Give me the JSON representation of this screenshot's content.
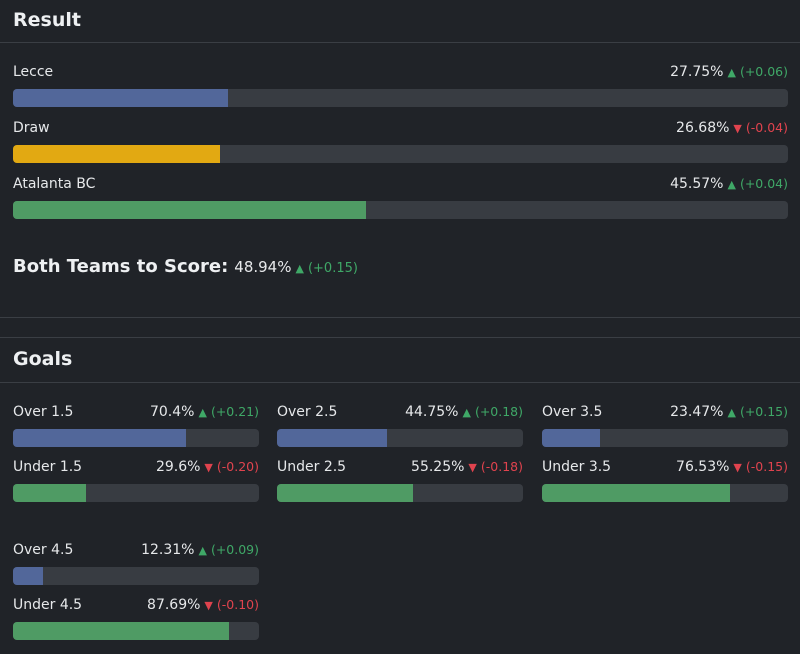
{
  "colors": {
    "blue": "#52679a",
    "yellow": "#e2a912",
    "green": "#4f9b64",
    "up": "#3fa867",
    "down": "#e0434e"
  },
  "result": {
    "title": "Result",
    "rows": [
      {
        "label": "Lecce",
        "pct": "27.75%",
        "value": 27.75,
        "direction": "up",
        "delta": "(+0.06)",
        "color": "blue"
      },
      {
        "label": "Draw",
        "pct": "26.68%",
        "value": 26.68,
        "direction": "down",
        "delta": "(-0.04)",
        "color": "yellow"
      },
      {
        "label": "Atalanta BC",
        "pct": "45.57%",
        "value": 45.57,
        "direction": "up",
        "delta": "(+0.04)",
        "color": "green"
      }
    ]
  },
  "btts": {
    "label": "Both Teams to Score:",
    "pct": "48.94%",
    "direction": "up",
    "delta": "(+0.15)"
  },
  "goals": {
    "title": "Goals",
    "groups": [
      {
        "over": {
          "label": "Over 1.5",
          "pct": "70.4%",
          "value": 70.4,
          "direction": "up",
          "delta": "(+0.21)"
        },
        "under": {
          "label": "Under 1.5",
          "pct": "29.6%",
          "value": 29.6,
          "direction": "down",
          "delta": "(-0.20)"
        }
      },
      {
        "over": {
          "label": "Over 2.5",
          "pct": "44.75%",
          "value": 44.75,
          "direction": "up",
          "delta": "(+0.18)"
        },
        "under": {
          "label": "Under 2.5",
          "pct": "55.25%",
          "value": 55.25,
          "direction": "down",
          "delta": "(-0.18)"
        }
      },
      {
        "over": {
          "label": "Over 3.5",
          "pct": "23.47%",
          "value": 23.47,
          "direction": "up",
          "delta": "(+0.15)"
        },
        "under": {
          "label": "Under 3.5",
          "pct": "76.53%",
          "value": 76.53,
          "direction": "down",
          "delta": "(-0.15)"
        }
      },
      {
        "over": {
          "label": "Over 4.5",
          "pct": "12.31%",
          "value": 12.31,
          "direction": "up",
          "delta": "(+0.09)"
        },
        "under": {
          "label": "Under 4.5",
          "pct": "87.69%",
          "value": 87.69,
          "direction": "down",
          "delta": "(-0.10)"
        }
      }
    ]
  }
}
